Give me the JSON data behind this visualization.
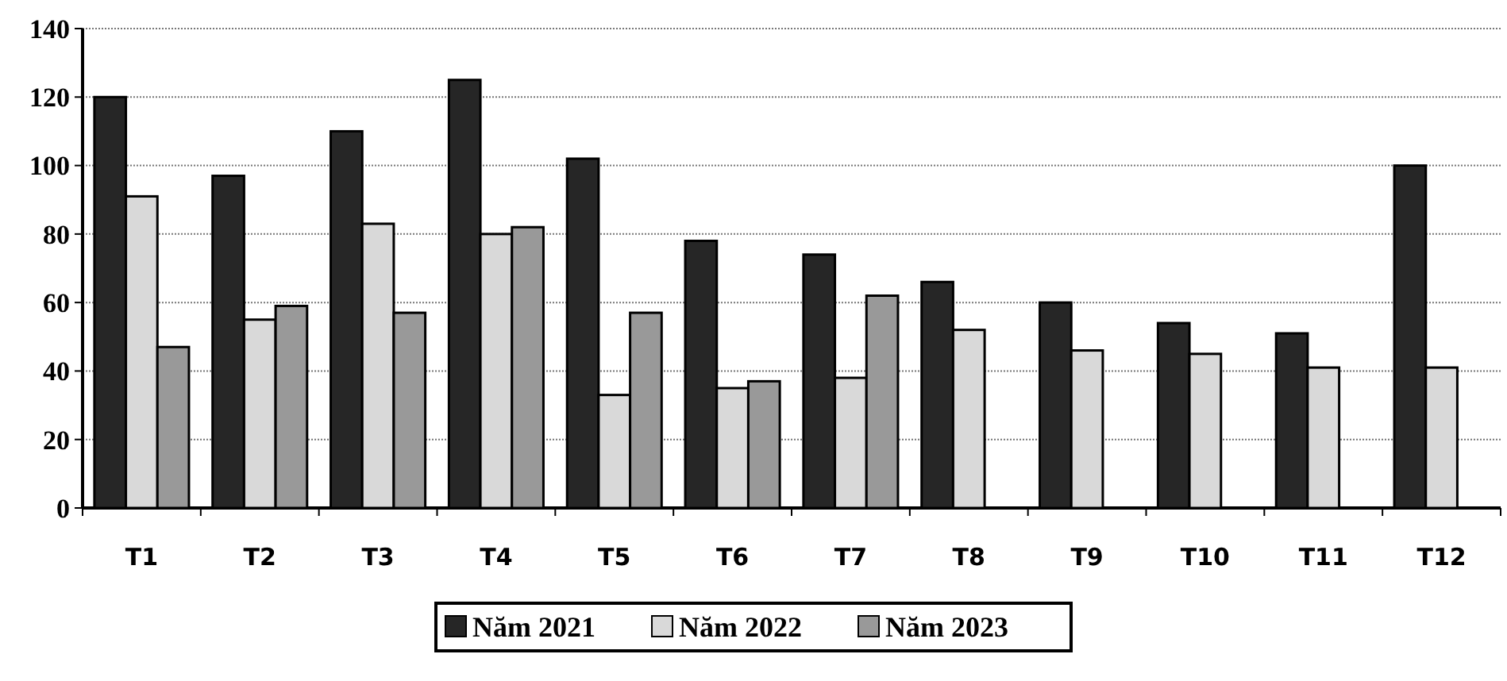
{
  "chart_data": {
    "type": "bar",
    "categories": [
      "T1",
      "T2",
      "T3",
      "T4",
      "T5",
      "T6",
      "T7",
      "T8",
      "T9",
      "T10",
      "T11",
      "T12"
    ],
    "series": [
      {
        "name": "Năm 2021",
        "color": "#262626",
        "values": [
          120,
          97,
          110,
          125,
          102,
          78,
          74,
          66,
          60,
          54,
          51,
          100
        ]
      },
      {
        "name": "Năm 2022",
        "color": "#d9d9d9",
        "values": [
          91,
          55,
          83,
          80,
          33,
          35,
          38,
          52,
          46,
          45,
          41,
          41
        ]
      },
      {
        "name": "Năm 2023",
        "color": "#999999",
        "values": [
          47,
          59,
          57,
          82,
          57,
          37,
          62,
          null,
          null,
          null,
          null,
          null
        ]
      }
    ],
    "ylim": [
      0,
      140
    ],
    "yticks": [
      0,
      20,
      40,
      60,
      80,
      100,
      120,
      140
    ],
    "grid": "y",
    "legend": "bottom"
  }
}
